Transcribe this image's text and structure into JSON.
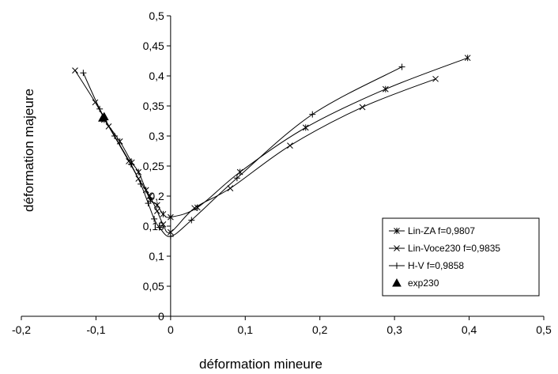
{
  "chart_data": {
    "type": "line",
    "xlabel": "déformation mineure",
    "ylabel": "déformation majeure",
    "xlim": [
      -0.2,
      0.5
    ],
    "ylim": [
      0,
      0.5
    ],
    "x_ticks": [
      "-0,2",
      "-0,1",
      "0",
      "0,1",
      "0,2",
      "0,3",
      "0,4",
      "0,5"
    ],
    "y_ticks": [
      "0",
      "0,05",
      "0,1",
      "0,15",
      "0,2",
      "0,25",
      "0,3",
      "0,35",
      "0,4",
      "0,45",
      "0,5"
    ],
    "grid": false,
    "legend_position": "right",
    "series": [
      {
        "name": "Lin-ZA  f=0,9807",
        "marker": "asterisk",
        "x": [
          -0.089,
          -0.068,
          -0.052,
          -0.043,
          -0.033,
          -0.027,
          -0.018,
          -0.01,
          0.0,
          0.036,
          0.093,
          0.181,
          0.288,
          0.398
        ],
        "y": [
          0.327,
          0.291,
          0.256,
          0.24,
          0.21,
          0.193,
          0.185,
          0.17,
          0.165,
          0.181,
          0.24,
          0.314,
          0.378,
          0.43
        ]
      },
      {
        "name": "Lin-Voce230 f=0,9835",
        "marker": "x",
        "x": [
          -0.128,
          -0.101,
          -0.083,
          -0.056,
          -0.043,
          -0.028,
          -0.018,
          -0.01,
          0.0,
          0.032,
          0.08,
          0.16,
          0.257,
          0.355
        ],
        "y": [
          0.409,
          0.356,
          0.316,
          0.258,
          0.229,
          0.2,
          0.175,
          0.153,
          0.14,
          0.18,
          0.213,
          0.284,
          0.348,
          0.395
        ]
      },
      {
        "name": "H-V f=0,9858",
        "marker": "plus",
        "x": [
          -0.117,
          -0.095,
          -0.075,
          -0.053,
          -0.04,
          -0.03,
          -0.022,
          -0.015,
          0.0,
          0.028,
          0.089,
          0.19,
          0.31
        ],
        "y": [
          0.405,
          0.345,
          0.3,
          0.253,
          0.22,
          0.188,
          0.162,
          0.148,
          0.133,
          0.16,
          0.23,
          0.336,
          0.415
        ]
      },
      {
        "name": "exp230",
        "marker": "triangle",
        "x": [
          -0.091,
          -0.089
        ],
        "y": [
          0.33,
          0.332
        ]
      }
    ]
  }
}
